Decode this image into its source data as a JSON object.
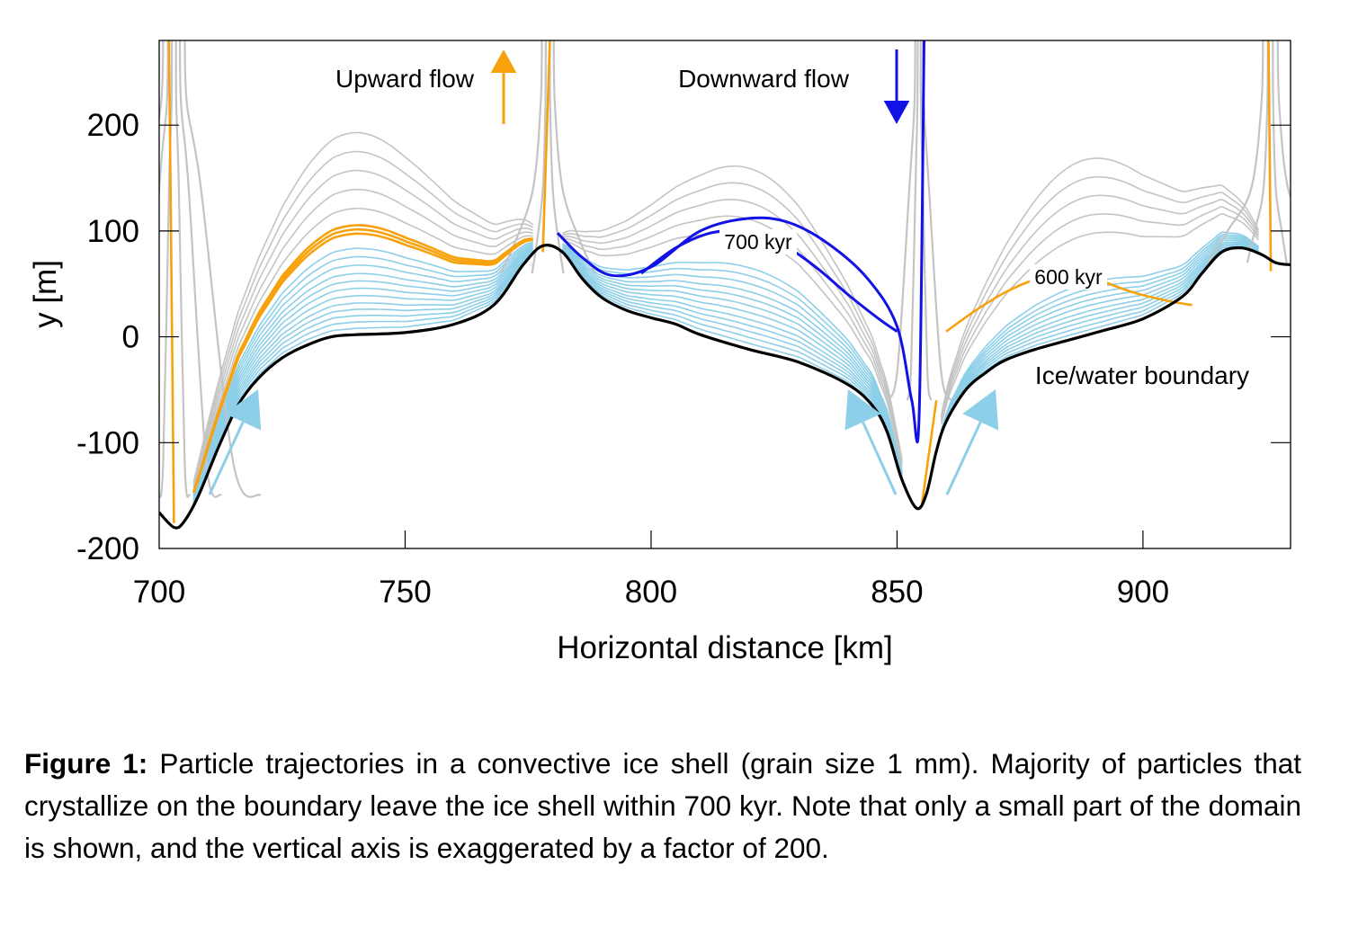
{
  "chart_data": {
    "type": "line",
    "title": "",
    "xlabel": "Horizontal distance [km]",
    "ylabel": "y [m]",
    "xlim": [
      700,
      930
    ],
    "ylim": [
      -200,
      280
    ],
    "xticks": [
      700,
      750,
      800,
      850,
      900
    ],
    "yticks": [
      -200,
      -100,
      0,
      100,
      200
    ],
    "grid": false,
    "colors": {
      "boundary": "#000000",
      "upward": "#f7a20c",
      "downward": "#1212e6",
      "young": "#8dcfe8",
      "old": "#c4c4c4"
    },
    "series": [
      {
        "name": "Ice/water boundary",
        "x": [
          700,
          703,
          705,
          708,
          712,
          716,
          720,
          725,
          730,
          735,
          740,
          750,
          760,
          768,
          774,
          778,
          782,
          786,
          790,
          795,
          800,
          805,
          810,
          820,
          830,
          840,
          845,
          848,
          851,
          854,
          856,
          858,
          860,
          864,
          868,
          872,
          878,
          885,
          892,
          900,
          908,
          912,
          916,
          920,
          924,
          927,
          930
        ],
        "y": [
          -166,
          -180,
          -175,
          -150,
          -105,
          -65,
          -40,
          -20,
          -8,
          0,
          2,
          4,
          12,
          30,
          68,
          86,
          80,
          55,
          37,
          25,
          18,
          12,
          2,
          -12,
          -24,
          -45,
          -65,
          -90,
          -135,
          -162,
          -148,
          -108,
          -80,
          -50,
          -34,
          -22,
          -12,
          -3,
          6,
          17,
          38,
          60,
          80,
          84,
          78,
          70,
          68
        ]
      },
      {
        "name": "700 kyr",
        "x": [
          798,
          805,
          812,
          818,
          823,
          828,
          834,
          840,
          846,
          850
        ],
        "y": [
          60,
          84,
          98,
          100,
          96,
          84,
          64,
          40,
          18,
          5
        ]
      },
      {
        "name": "600 kyr",
        "x": [
          860,
          866,
          872,
          878,
          884,
          888,
          892,
          898,
          905,
          910
        ],
        "y": [
          5,
          25,
          42,
          54,
          60,
          58,
          52,
          42,
          34,
          30
        ]
      }
    ],
    "annotations": [
      "Upward flow",
      "Downward flow",
      "700 kyr",
      "600 kyr",
      "Ice/water boundary"
    ]
  },
  "caption": {
    "label": "Figure 1:",
    "text": " Particle trajectories in a convective ice shell (grain size 1 mm). Majority of particles that crystallize on the boundary leave the ice shell within 700 kyr. Note that only a small part of the domain is shown, and the vertical axis is exaggerated by a factor of 200."
  }
}
